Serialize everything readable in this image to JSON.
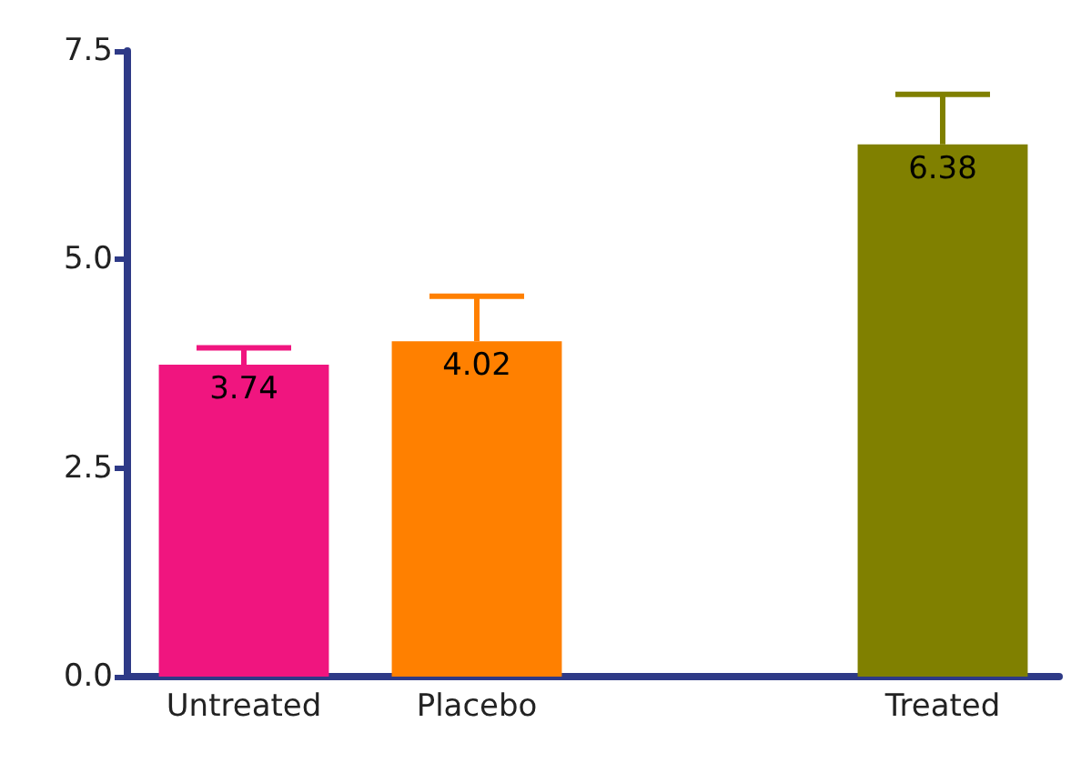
{
  "chart_data": {
    "type": "bar",
    "categories": [
      "Untreated",
      "Placebo",
      null,
      "Treated"
    ],
    "values": [
      3.74,
      4.02,
      null,
      6.38
    ],
    "colors": [
      "#f0157f",
      "#ff8000",
      null,
      "#808000"
    ],
    "errors": [
      [
        3.74,
        3.94
      ],
      [
        4.02,
        4.56
      ],
      null,
      [
        6.38,
        6.98
      ]
    ],
    "data_labels": true,
    "ylim": [
      0,
      7.5
    ],
    "yticks": [
      {
        "value": 0,
        "label": "0.0"
      },
      {
        "value": 2.5,
        "label": "2.5"
      },
      {
        "value": 5,
        "label": "5.0"
      },
      {
        "value": 7.5,
        "label": "7.5"
      }
    ],
    "grid": false
  }
}
